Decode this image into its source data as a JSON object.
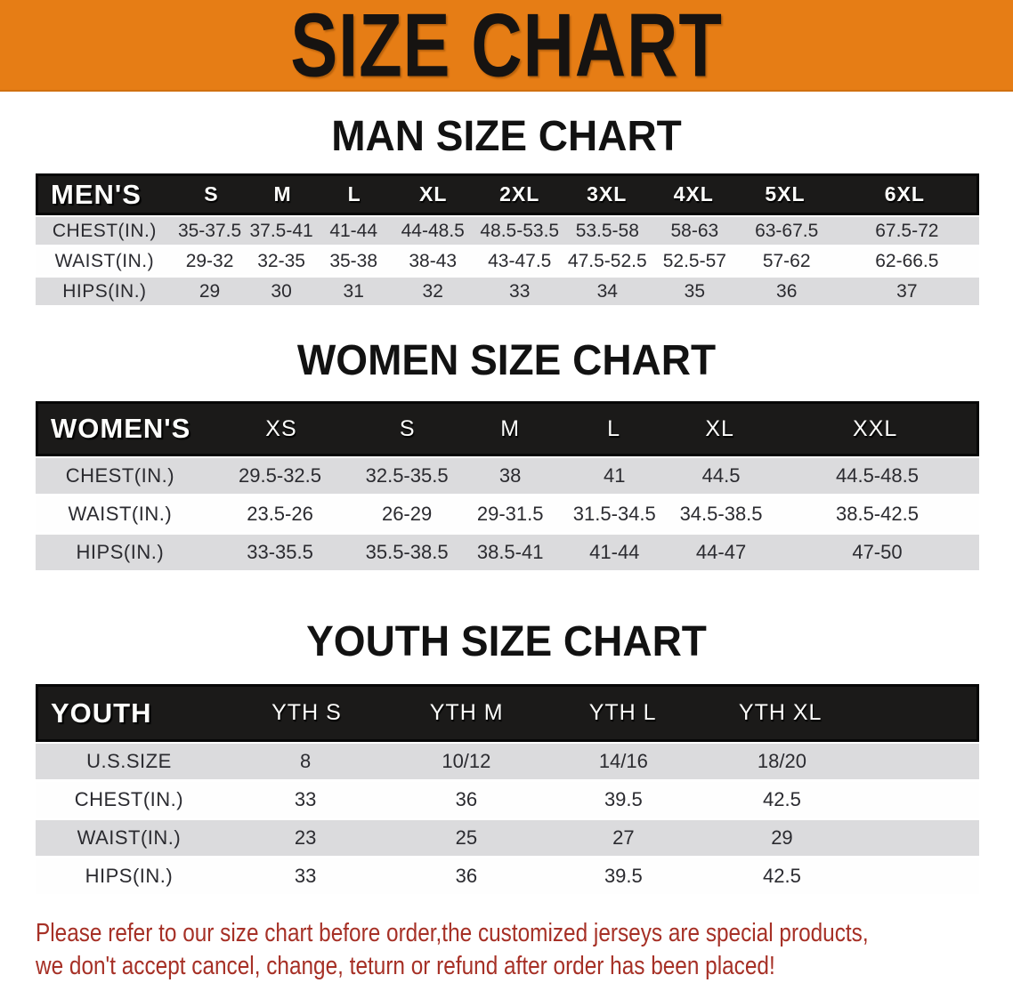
{
  "banner": {
    "title": "SIZE CHART",
    "background": "#E67D15",
    "text_color": "#161311"
  },
  "sections": [
    {
      "heading": "MAN SIZE CHART",
      "table": {
        "label": "MEN'S",
        "columns": [
          "S",
          "M",
          "L",
          "XL",
          "2XL",
          "3XL",
          "4XL",
          "5XL",
          "6XL"
        ],
        "rows": [
          {
            "label": "CHEST(IN.)",
            "values": [
              "35-37.5",
              "37.5-41",
              "41-44",
              "44-48.5",
              "48.5-53.5",
              "53.5-58",
              "58-63",
              "63-67.5",
              "67.5-72"
            ]
          },
          {
            "label": "WAIST(IN.)",
            "values": [
              "29-32",
              "32-35",
              "35-38",
              "38-43",
              "43-47.5",
              "47.5-52.5",
              "52.5-57",
              "57-62",
              "62-66.5"
            ]
          },
          {
            "label": "HIPS(IN.)",
            "values": [
              "29",
              "30",
              "31",
              "32",
              "33",
              "34",
              "35",
              "36",
              "37"
            ]
          }
        ]
      }
    },
    {
      "heading": "WOMEN SIZE CHART",
      "table": {
        "label": "WOMEN'S",
        "columns": [
          "XS",
          "S",
          "M",
          "L",
          "XL",
          "XXL"
        ],
        "rows": [
          {
            "label": "CHEST(IN.)",
            "values": [
              "29.5-32.5",
              "32.5-35.5",
              "38",
              "41",
              "44.5",
              "44.5-48.5"
            ]
          },
          {
            "label": "WAIST(IN.)",
            "values": [
              "23.5-26",
              "26-29",
              "29-31.5",
              "31.5-34.5",
              "34.5-38.5",
              "38.5-42.5"
            ]
          },
          {
            "label": "HIPS(IN.)",
            "values": [
              "33-35.5",
              "35.5-38.5",
              "38.5-41",
              "41-44",
              "44-47",
              "47-50"
            ]
          }
        ]
      }
    },
    {
      "heading": "YOUTH SIZE CHART",
      "table": {
        "label": "YOUTH",
        "columns": [
          "YTH S",
          "YTH M",
          "YTH L",
          "YTH XL"
        ],
        "rows": [
          {
            "label": "U.S.SIZE",
            "values": [
              "8",
              "10/12",
              "14/16",
              "18/20"
            ]
          },
          {
            "label": "CHEST(IN.)",
            "values": [
              "33",
              "36",
              "39.5",
              "42.5"
            ]
          },
          {
            "label": "WAIST(IN.)",
            "values": [
              "23",
              "25",
              "27",
              "29"
            ]
          },
          {
            "label": "HIPS(IN.)",
            "values": [
              "33",
              "36",
              "39.5",
              "42.5"
            ]
          }
        ]
      }
    }
  ],
  "disclaimer": {
    "line1": "Please refer to our size chart before order,the customized jerseys are special products,",
    "line2": "we don't accept cancel, change, teturn or refund after order has been placed!",
    "color": "#A63026"
  },
  "colors": {
    "banner_orange": "#E67D15",
    "header_black": "#1b1a19",
    "striped_row_gray": "#dbdbdd",
    "row_text": "#2b2b30"
  }
}
